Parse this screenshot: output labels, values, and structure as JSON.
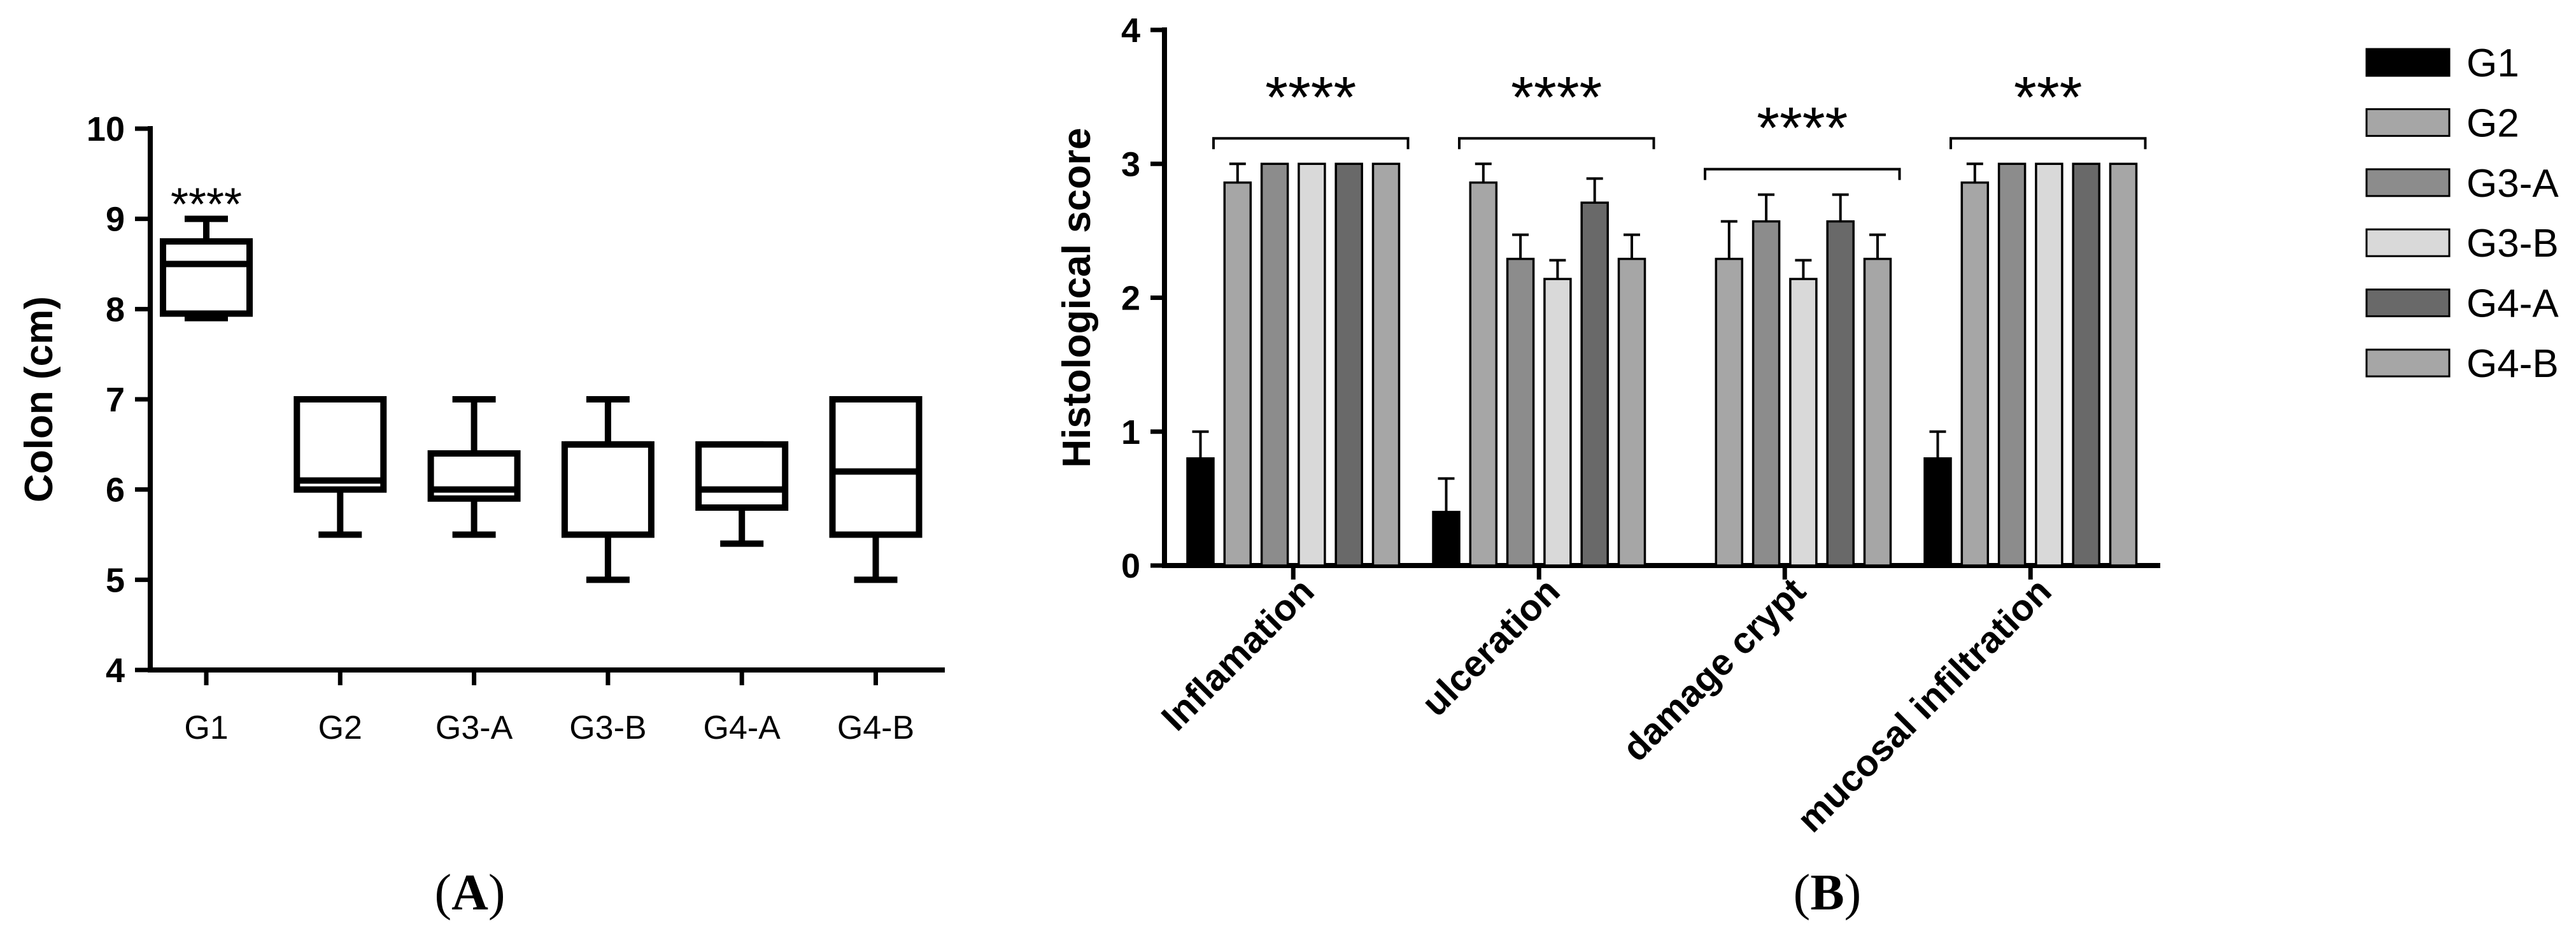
{
  "figure": {
    "panel_labels": [
      {
        "open": "(",
        "letter": "A",
        "close": ")"
      },
      {
        "open": "(",
        "letter": "B",
        "close": ")"
      }
    ]
  },
  "chart_data": [
    {
      "type": "box",
      "title": "",
      "xlabel": "",
      "ylabel": "Colon (cm)",
      "ylim": [
        4,
        10
      ],
      "yticks": [
        4,
        5,
        6,
        7,
        8,
        9,
        10
      ],
      "grid": false,
      "box_color": "#000000",
      "categories": [
        "G1",
        "G2",
        "G3-A",
        "G3-B",
        "G4-A",
        "G4-B"
      ],
      "boxes": [
        {
          "min": 7.9,
          "q1": 7.95,
          "median": 8.5,
          "q3": 8.75,
          "max": 9.0
        },
        {
          "min": 5.5,
          "q1": 6.0,
          "median": 6.1,
          "q3": 7.0,
          "max": 7.0
        },
        {
          "min": 5.5,
          "q1": 5.9,
          "median": 6.0,
          "q3": 6.4,
          "max": 7.0
        },
        {
          "min": 5.0,
          "q1": 5.5,
          "median": 6.5,
          "q3": 6.5,
          "max": 7.0
        },
        {
          "min": 5.4,
          "q1": 5.8,
          "median": 6.0,
          "q3": 6.5,
          "max": 6.5
        },
        {
          "min": 5.0,
          "q1": 5.5,
          "median": 6.2,
          "q3": 7.0,
          "max": 7.0
        }
      ],
      "annotations": [
        {
          "category": "G1",
          "text": "****"
        }
      ]
    },
    {
      "type": "bar",
      "title": "",
      "xlabel": "",
      "ylabel": "Histological score",
      "ylim": [
        0,
        4
      ],
      "yticks": [
        0,
        1,
        2,
        3,
        4
      ],
      "grid": false,
      "legend": "right",
      "categories": [
        "Inflamation",
        "ulceration",
        "damage crypt",
        "mucosal infiltration"
      ],
      "series": [
        {
          "name": "G1",
          "color": "#000000",
          "values": [
            0.8,
            0.4,
            0,
            0.8
          ],
          "errors": [
            0.2,
            0.25,
            0,
            0.2
          ]
        },
        {
          "name": "G2",
          "color": "#a6a6a6",
          "values": [
            2.86,
            2.86,
            2.29,
            2.86
          ],
          "errors": [
            0.14,
            0.14,
            0.28,
            0.14
          ]
        },
        {
          "name": "G3-A",
          "color": "#8c8c8c",
          "values": [
            3.0,
            2.29,
            2.57,
            3.0
          ],
          "errors": [
            0,
            0.18,
            0.2,
            0
          ]
        },
        {
          "name": "G3-B",
          "color": "#d9d9d9",
          "values": [
            3.0,
            2.14,
            2.14,
            3.0
          ],
          "errors": [
            0,
            0.14,
            0.14,
            0
          ]
        },
        {
          "name": "G4-A",
          "color": "#696969",
          "values": [
            3.0,
            2.71,
            2.57,
            3.0
          ],
          "errors": [
            0,
            0.18,
            0.2,
            0
          ]
        },
        {
          "name": "G4-B",
          "color": "#a6a6a6",
          "values": [
            3.0,
            2.29,
            2.29,
            3.0
          ],
          "errors": [
            0,
            0.18,
            0.18,
            0
          ]
        }
      ],
      "significance": [
        "****",
        "****",
        "****",
        "***"
      ]
    }
  ]
}
